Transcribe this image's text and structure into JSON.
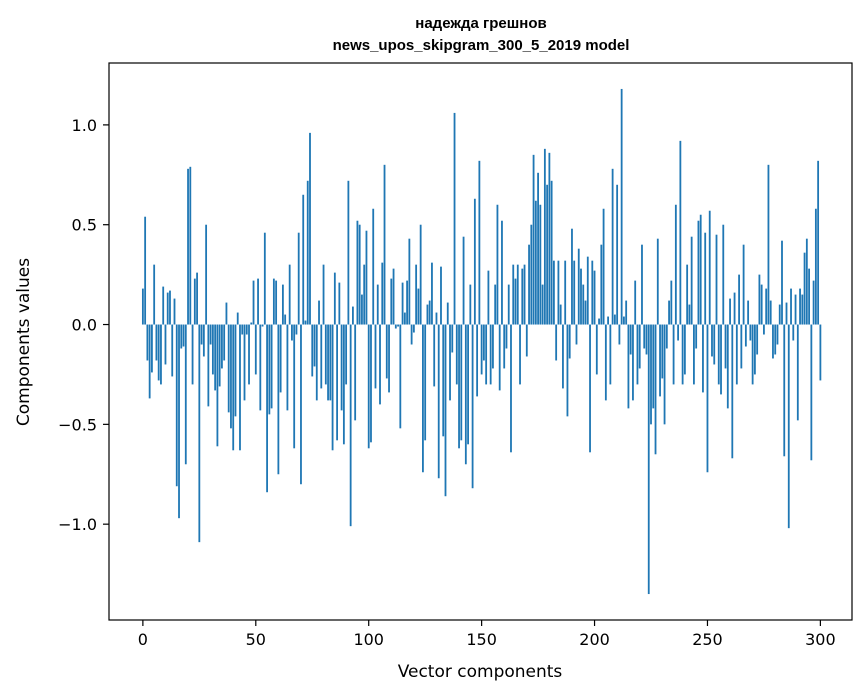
{
  "chart_data": {
    "type": "bar",
    "title": "надежда грешнов",
    "subtitle": "news_upos_skipgram_300_5_2019 model",
    "xlabel": "Vector components",
    "ylabel": "Components values",
    "xlim": [
      -15,
      314
    ],
    "ylim": [
      -1.48,
      1.31
    ],
    "x_ticks": [
      0,
      50,
      100,
      150,
      200,
      250,
      300
    ],
    "x_tick_labels": [
      "0",
      "50",
      "100",
      "150",
      "200",
      "250",
      "300"
    ],
    "y_ticks": [
      -1.0,
      -0.5,
      0.0,
      0.5,
      1.0
    ],
    "y_tick_labels": [
      "−1.0",
      "−0.5",
      "0.0",
      "0.5",
      "1.0"
    ],
    "grid": false,
    "legend": "none",
    "bar_color": "#1f77b4",
    "x_start": 0,
    "values": [
      0.18,
      0.54,
      -0.18,
      -0.37,
      -0.24,
      0.3,
      -0.18,
      -0.28,
      -0.3,
      0.19,
      -0.2,
      0.16,
      0.17,
      -0.26,
      0.13,
      -0.81,
      -0.97,
      -0.12,
      -0.11,
      -0.7,
      0.78,
      0.79,
      -0.3,
      0.23,
      0.26,
      -1.09,
      -0.1,
      -0.16,
      0.5,
      -0.41,
      -0.1,
      -0.25,
      -0.33,
      -0.61,
      -0.31,
      -0.22,
      -0.18,
      0.11,
      -0.44,
      -0.52,
      -0.63,
      -0.46,
      0.06,
      -0.63,
      -0.05,
      -0.38,
      -0.05,
      -0.3,
      0.01,
      0.22,
      -0.25,
      0.23,
      -0.43,
      -0.01,
      0.46,
      -0.84,
      -0.45,
      -0.42,
      0.23,
      0.22,
      -0.75,
      -0.34,
      0.2,
      0.05,
      -0.43,
      0.3,
      -0.08,
      -0.62,
      -0.05,
      0.46,
      -0.8,
      0.65,
      0.02,
      0.72,
      0.96,
      -0.26,
      -0.21,
      -0.38,
      0.12,
      -0.32,
      0.3,
      -0.3,
      -0.38,
      -0.38,
      -0.63,
      0.26,
      -0.58,
      0.21,
      -0.43,
      -0.6,
      -0.3,
      0.72,
      -1.01,
      0.09,
      -0.48,
      0.52,
      0.5,
      0.15,
      0.3,
      0.47,
      -0.62,
      -0.59,
      0.58,
      -0.32,
      0.2,
      -0.4,
      0.31,
      0.8,
      -0.27,
      -0.34,
      0.23,
      0.28,
      -0.02,
      -0.01,
      -0.52,
      0.21,
      0.06,
      0.22,
      0.43,
      -0.1,
      -0.04,
      0.3,
      0.18,
      0.5,
      -0.74,
      -0.58,
      0.1,
      0.12,
      0.31,
      -0.31,
      0.06,
      -0.77,
      0.29,
      -0.56,
      -0.86,
      0.11,
      -0.38,
      -0.14,
      1.06,
      -0.3,
      -0.62,
      -0.58,
      0.44,
      -0.7,
      -0.6,
      0.2,
      -0.82,
      0.63,
      -0.36,
      0.82,
      -0.25,
      -0.18,
      -0.3,
      0.27,
      -0.3,
      -0.22,
      0.2,
      0.6,
      -0.33,
      0.52,
      -0.22,
      -0.12,
      0.2,
      -0.64,
      0.3,
      0.23,
      0.3,
      -0.3,
      0.28,
      0.3,
      -0.16,
      0.4,
      0.5,
      0.85,
      0.62,
      0.76,
      0.6,
      0.2,
      0.88,
      0.7,
      0.86,
      0.72,
      0.32,
      -0.18,
      0.32,
      0.1,
      -0.32,
      0.32,
      -0.46,
      -0.17,
      0.48,
      0.32,
      -0.1,
      0.38,
      0.28,
      0.2,
      0.12,
      0.34,
      -0.64,
      0.32,
      0.27,
      -0.25,
      0.03,
      0.4,
      0.58,
      -0.38,
      0.04,
      -0.3,
      0.78,
      0.05,
      0.7,
      -0.1,
      1.18,
      0.04,
      0.12,
      -0.42,
      -0.15,
      -0.38,
      0.22,
      -0.3,
      -0.22,
      0.4,
      -0.12,
      -0.15,
      -1.35,
      -0.5,
      -0.42,
      -0.65,
      0.43,
      -0.36,
      -0.27,
      -0.5,
      -0.12,
      0.12,
      0.22,
      -0.3,
      0.6,
      -0.08,
      0.92,
      -0.3,
      -0.25,
      0.3,
      0.1,
      0.44,
      -0.3,
      -0.12,
      0.52,
      0.55,
      -0.34,
      0.46,
      -0.74,
      0.57,
      -0.16,
      -0.2,
      0.45,
      -0.3,
      -0.35,
      0.5,
      -0.22,
      -0.42,
      0.13,
      -0.67,
      0.16,
      -0.3,
      0.25,
      -0.22,
      0.4,
      -0.11,
      0.12,
      -0.08,
      -0.3,
      -0.25,
      -0.15,
      0.25,
      0.2,
      -0.05,
      0.18,
      0.8,
      0.12,
      -0.17,
      -0.15,
      -0.1,
      0.1,
      0.42,
      -0.66,
      0.11,
      -1.02,
      0.18,
      -0.08,
      0.15,
      -0.48,
      0.18,
      0.15,
      0.36,
      0.43,
      0.28,
      -0.68,
      0.22,
      0.58,
      0.82,
      -0.28
    ]
  }
}
